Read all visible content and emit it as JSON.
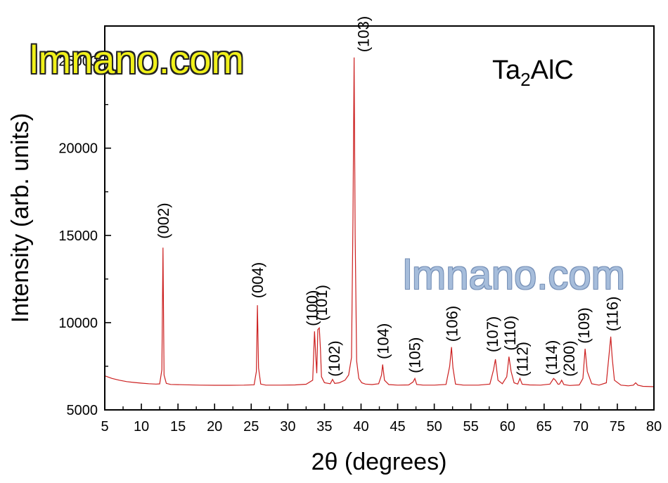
{
  "chart_data": {
    "type": "line",
    "xlabel": "2θ (degrees)",
    "ylabel": "Intensity (arb. units)",
    "xlim": [
      5,
      80
    ],
    "ylim": [
      5000,
      27000
    ],
    "xticks": [
      5,
      10,
      15,
      20,
      25,
      30,
      35,
      40,
      45,
      50,
      55,
      60,
      65,
      70,
      75,
      80
    ],
    "yticks": [
      5000,
      10000,
      15000,
      20000,
      25000
    ],
    "sample_label": {
      "base": "Ta",
      "sub": "2",
      "rest": "AlC"
    },
    "series": [
      {
        "color": "#cc2020",
        "x": [
          5,
          6,
          7,
          8,
          9,
          10,
          11,
          12,
          12.5,
          12.8,
          12.95,
          13.1,
          13.4,
          14,
          16,
          18,
          20,
          22,
          24,
          25.4,
          25.7,
          25.85,
          26.0,
          26.3,
          27,
          29,
          31,
          32.5,
          33.4,
          33.65,
          33.8,
          33.95,
          34.1,
          34.3,
          34.45,
          34.6,
          35,
          35.8,
          36.1,
          36.4,
          37,
          37.8,
          38.3,
          38.7,
          38.9,
          39.05,
          39.2,
          39.4,
          39.7,
          40.1,
          40.6,
          41.5,
          42.4,
          42.8,
          42.95,
          43.2,
          43.8,
          45,
          46.5,
          47.1,
          47.35,
          47.6,
          48.5,
          50,
          51.6,
          52.1,
          52.35,
          52.55,
          52.9,
          54,
          56,
          57.6,
          58.1,
          58.35,
          58.7,
          59.3,
          59.9,
          60.2,
          60.5,
          60.9,
          61.4,
          61.7,
          62,
          63,
          64.5,
          65.8,
          66.3,
          66.55,
          66.9,
          67.1,
          67.4,
          67.7,
          68.5,
          69.8,
          70.3,
          70.6,
          70.9,
          71.5,
          72.5,
          73.5,
          73.9,
          74.1,
          74.3,
          74.6,
          75.5,
          76.5,
          77.2,
          77.5,
          77.8,
          78.5,
          80
        ],
        "values": [
          6950,
          6800,
          6700,
          6620,
          6570,
          6530,
          6500,
          6480,
          6490,
          7300,
          14300,
          7000,
          6520,
          6460,
          6440,
          6420,
          6410,
          6410,
          6420,
          6440,
          7200,
          11000,
          7400,
          6480,
          6420,
          6420,
          6430,
          6470,
          6700,
          9500,
          8200,
          7100,
          9600,
          9700,
          8500,
          6900,
          6560,
          6500,
          6750,
          6520,
          6550,
          6700,
          7000,
          8000,
          16000,
          25200,
          15000,
          7800,
          6800,
          6550,
          6480,
          6450,
          6500,
          7000,
          7600,
          6700,
          6450,
          6420,
          6430,
          6600,
          6800,
          6460,
          6420,
          6420,
          6460,
          7500,
          8600,
          7400,
          6480,
          6420,
          6420,
          6480,
          7300,
          7900,
          6700,
          6500,
          6900,
          8050,
          7200,
          6550,
          6480,
          6800,
          6470,
          6430,
          6420,
          6480,
          6800,
          6700,
          6470,
          6480,
          6700,
          6450,
          6400,
          6430,
          6800,
          8500,
          7200,
          6500,
          6420,
          6550,
          8300,
          9200,
          8000,
          6700,
          6420,
          6380,
          6420,
          6550,
          6420,
          6350,
          6330
        ],
        "peak_labels": [
          {
            "text": "(002)",
            "x": 12.95,
            "label_y": 14800
          },
          {
            "text": "(004)",
            "x": 25.85,
            "label_y": 11400
          },
          {
            "text": "(100)",
            "x": 33.3,
            "label_y": 9800
          },
          {
            "text": "(101)",
            "x": 34.6,
            "label_y": 10100
          },
          {
            "text": "(102)",
            "x": 36.3,
            "label_y": 6900
          },
          {
            "text": "(103)",
            "x": 40.3,
            "label_y": 25500
          },
          {
            "text": "(104)",
            "x": 43.0,
            "label_y": 7900
          },
          {
            "text": "(105)",
            "x": 47.3,
            "label_y": 7100
          },
          {
            "text": "(106)",
            "x": 52.4,
            "label_y": 8900
          },
          {
            "text": "(107)",
            "x": 57.9,
            "label_y": 8300
          },
          {
            "text": "(110)",
            "x": 60.3,
            "label_y": 8400
          },
          {
            "text": "(112)",
            "x": 62.0,
            "label_y": 6900
          },
          {
            "text": "(114)",
            "x": 66.0,
            "label_y": 7000
          },
          {
            "text": "(200)",
            "x": 68.4,
            "label_y": 6900
          },
          {
            "text": "(109)",
            "x": 70.4,
            "label_y": 8800
          },
          {
            "text": "(116)",
            "x": 74.3,
            "label_y": 9500
          }
        ]
      }
    ]
  },
  "watermarks": [
    "lmnano.com",
    "lmnano.com"
  ]
}
